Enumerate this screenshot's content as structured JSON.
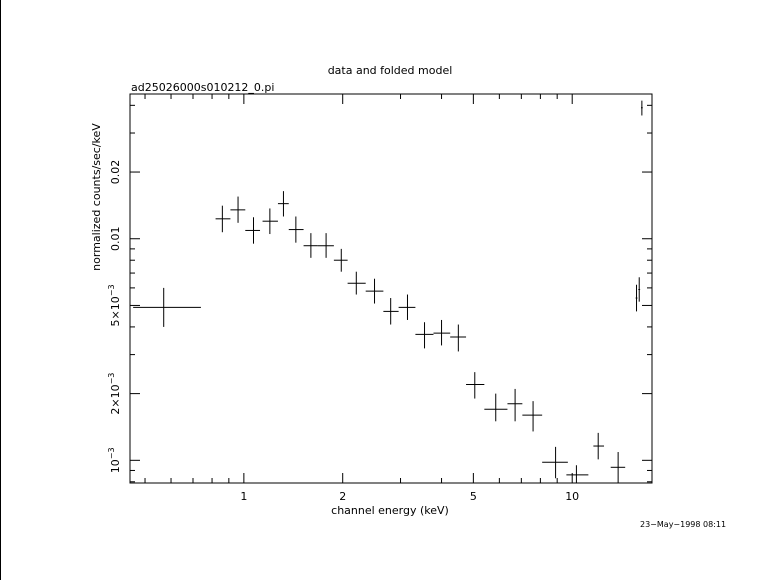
{
  "chart_data": {
    "type": "scatter",
    "title": "data and folded model",
    "subtitle": "ad25026000s010212_0.pi",
    "xlabel": "channel energy (keV)",
    "ylabel": "normalized counts/sec/keV",
    "x_scale": "log",
    "y_scale": "log",
    "xlim": [
      0.45,
      17.5
    ],
    "ylim": [
      0.00079,
      0.045
    ],
    "x_ticks": [
      {
        "value": 1,
        "label": "1"
      },
      {
        "value": 2,
        "label": "2"
      },
      {
        "value": 5,
        "label": "5"
      },
      {
        "value": 10,
        "label": "10"
      }
    ],
    "y_ticks": [
      {
        "value": 0.001,
        "label": "10",
        "sup": "−3"
      },
      {
        "value": 0.002,
        "label": "2×10",
        "sup": "−3"
      },
      {
        "value": 0.005,
        "label": "5×10",
        "sup": "−3"
      },
      {
        "value": 0.01,
        "label": "0.01",
        "sup": ""
      },
      {
        "value": 0.02,
        "label": "0.02",
        "sup": ""
      }
    ],
    "grid": false,
    "legend": "none",
    "points": [
      {
        "x": 0.57,
        "xlo": 0.46,
        "xhi": 0.74,
        "y": 0.0049,
        "ylo": 0.004,
        "yhi": 0.006
      },
      {
        "x": 0.86,
        "xlo": 0.82,
        "xhi": 0.91,
        "y": 0.0123,
        "ylo": 0.0107,
        "yhi": 0.0141
      },
      {
        "x": 0.96,
        "xlo": 0.91,
        "xhi": 1.01,
        "y": 0.0135,
        "ylo": 0.0118,
        "yhi": 0.0155
      },
      {
        "x": 1.07,
        "xlo": 1.01,
        "xhi": 1.12,
        "y": 0.0109,
        "ylo": 0.0095,
        "yhi": 0.0125
      },
      {
        "x": 1.2,
        "xlo": 1.14,
        "xhi": 1.27,
        "y": 0.012,
        "ylo": 0.0105,
        "yhi": 0.0137
      },
      {
        "x": 1.32,
        "xlo": 1.27,
        "xhi": 1.37,
        "y": 0.0144,
        "ylo": 0.0126,
        "yhi": 0.0164
      },
      {
        "x": 1.44,
        "xlo": 1.37,
        "xhi": 1.52,
        "y": 0.011,
        "ylo": 0.0096,
        "yhi": 0.0126
      },
      {
        "x": 1.6,
        "xlo": 1.52,
        "xhi": 1.68,
        "y": 0.0093,
        "ylo": 0.0082,
        "yhi": 0.0106
      },
      {
        "x": 1.78,
        "xlo": 1.68,
        "xhi": 1.88,
        "y": 0.0093,
        "ylo": 0.0082,
        "yhi": 0.0106
      },
      {
        "x": 1.98,
        "xlo": 1.88,
        "xhi": 2.07,
        "y": 0.008,
        "ylo": 0.0071,
        "yhi": 0.009
      },
      {
        "x": 2.2,
        "xlo": 2.07,
        "xhi": 2.35,
        "y": 0.0063,
        "ylo": 0.0056,
        "yhi": 0.0071
      },
      {
        "x": 2.5,
        "xlo": 2.35,
        "xhi": 2.66,
        "y": 0.0058,
        "ylo": 0.0051,
        "yhi": 0.0066
      },
      {
        "x": 2.8,
        "xlo": 2.66,
        "xhi": 2.96,
        "y": 0.0047,
        "ylo": 0.0041,
        "yhi": 0.0054
      },
      {
        "x": 3.15,
        "xlo": 2.96,
        "xhi": 3.33,
        "y": 0.0049,
        "ylo": 0.0043,
        "yhi": 0.0056
      },
      {
        "x": 3.55,
        "xlo": 3.33,
        "xhi": 3.78,
        "y": 0.0037,
        "ylo": 0.0032,
        "yhi": 0.0042
      },
      {
        "x": 4.0,
        "xlo": 3.78,
        "xhi": 4.25,
        "y": 0.00375,
        "ylo": 0.0033,
        "yhi": 0.0043
      },
      {
        "x": 4.5,
        "xlo": 4.25,
        "xhi": 4.75,
        "y": 0.0036,
        "ylo": 0.0031,
        "yhi": 0.0041
      },
      {
        "x": 5.05,
        "xlo": 4.75,
        "xhi": 5.4,
        "y": 0.0022,
        "ylo": 0.0019,
        "yhi": 0.0025
      },
      {
        "x": 5.85,
        "xlo": 5.4,
        "xhi": 6.35,
        "y": 0.0017,
        "ylo": 0.0015,
        "yhi": 0.002
      },
      {
        "x": 6.7,
        "xlo": 6.35,
        "xhi": 7.05,
        "y": 0.0018,
        "ylo": 0.0015,
        "yhi": 0.0021
      },
      {
        "x": 7.6,
        "xlo": 7.05,
        "xhi": 8.1,
        "y": 0.0016,
        "ylo": 0.00135,
        "yhi": 0.00185
      },
      {
        "x": 8.9,
        "xlo": 8.1,
        "xhi": 9.7,
        "y": 0.00098,
        "ylo": 0.00083,
        "yhi": 0.00115
      },
      {
        "x": 10.3,
        "xlo": 9.6,
        "xhi": 11.2,
        "y": 0.00086,
        "ylo": 0.00079,
        "yhi": 0.00095
      },
      {
        "x": 12.0,
        "xlo": 11.6,
        "xhi": 12.5,
        "y": 0.00116,
        "ylo": 0.00101,
        "yhi": 0.00133
      },
      {
        "x": 13.8,
        "xlo": 13.1,
        "xhi": 14.5,
        "y": 0.00093,
        "ylo": 0.00079,
        "yhi": 0.00109
      },
      {
        "x": 15.7,
        "xlo": 15.6,
        "xhi": 15.8,
        "y": 0.0054,
        "ylo": 0.0047,
        "yhi": 0.0062
      },
      {
        "x": 16.0,
        "xlo": 15.9,
        "xhi": 16.1,
        "y": 0.0059,
        "ylo": 0.0052,
        "yhi": 0.0067
      },
      {
        "x": 16.3,
        "xlo": 16.2,
        "xhi": 16.4,
        "y": 0.039,
        "ylo": 0.036,
        "yhi": 0.042
      }
    ]
  },
  "footer": {
    "timestamp": "23−May−1998 08:11"
  }
}
